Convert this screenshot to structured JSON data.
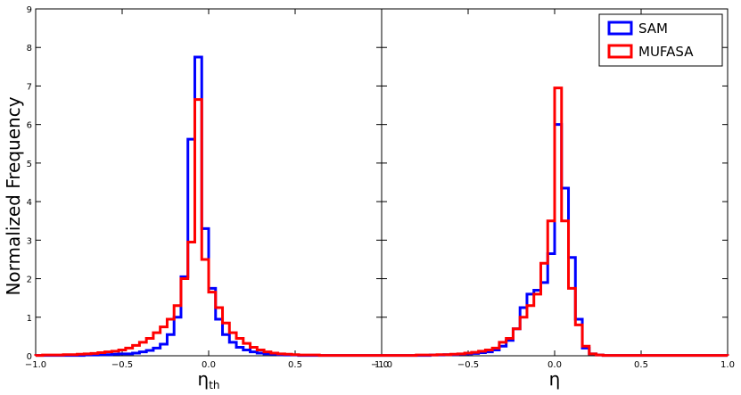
{
  "chart_data": [
    {
      "type": "line",
      "panel": "left",
      "xlabel": "η",
      "xlabel_subscript": "th",
      "ylabel": "Normalized Frequency",
      "xlim": [
        -1.0,
        1.0
      ],
      "ylim": [
        0,
        9
      ],
      "x_ticks": [
        "−1.0",
        "−0.5",
        "0.0",
        "0.5",
        "1.0"
      ],
      "y_ticks": [
        "0",
        "1",
        "2",
        "3",
        "4",
        "5",
        "6",
        "7",
        "8",
        "9"
      ],
      "bin_edges_start": -1.0,
      "bin_width": 0.04,
      "series": [
        {
          "name": "SAM",
          "color": "#0000ff",
          "values": [
            0.01,
            0.01,
            0.01,
            0.01,
            0.01,
            0.01,
            0.01,
            0.02,
            0.02,
            0.03,
            0.03,
            0.04,
            0.05,
            0.05,
            0.07,
            0.1,
            0.14,
            0.2,
            0.3,
            0.55,
            1.0,
            2.05,
            5.62,
            7.75,
            3.3,
            1.75,
            0.95,
            0.55,
            0.35,
            0.22,
            0.15,
            0.1,
            0.07,
            0.05,
            0.04,
            0.03,
            0.02,
            0.02,
            0.01,
            0.01,
            0.01,
            0.01,
            0.01,
            0.01,
            0.01,
            0.01,
            0.01,
            0.01,
            0.01,
            0.01
          ]
        },
        {
          "name": "MUFASA",
          "color": "#ff0000",
          "values": [
            0.01,
            0.02,
            0.02,
            0.02,
            0.03,
            0.03,
            0.04,
            0.05,
            0.06,
            0.08,
            0.1,
            0.12,
            0.15,
            0.2,
            0.27,
            0.35,
            0.45,
            0.6,
            0.75,
            0.95,
            1.3,
            2.0,
            2.95,
            6.65,
            2.5,
            1.65,
            1.25,
            0.85,
            0.6,
            0.45,
            0.32,
            0.22,
            0.15,
            0.1,
            0.07,
            0.05,
            0.04,
            0.03,
            0.02,
            0.02,
            0.02,
            0.01,
            0.01,
            0.01,
            0.01,
            0.01,
            0.01,
            0.01,
            0.01,
            0.01
          ]
        }
      ]
    },
    {
      "type": "line",
      "panel": "right",
      "xlabel": "η",
      "xlim": [
        -1.0,
        1.0
      ],
      "ylim": [
        0,
        9
      ],
      "x_ticks": [
        "−1.0",
        "−0.5",
        "0.0",
        "0.5",
        "1.0"
      ],
      "bin_edges_start": -1.0,
      "bin_width": 0.04,
      "series": [
        {
          "name": "SAM",
          "color": "#0000ff",
          "values": [
            0.01,
            0.01,
            0.01,
            0.01,
            0.01,
            0.01,
            0.01,
            0.02,
            0.02,
            0.03,
            0.03,
            0.04,
            0.05,
            0.06,
            0.08,
            0.1,
            0.15,
            0.25,
            0.4,
            0.7,
            1.25,
            1.6,
            1.7,
            1.9,
            2.65,
            6.0,
            4.35,
            2.55,
            0.95,
            0.2,
            0.05,
            0.02,
            0.01,
            0.01,
            0.01,
            0.01,
            0.01,
            0.01,
            0.01,
            0.01,
            0.01,
            0.01,
            0.01,
            0.01,
            0.01,
            0.01,
            0.01,
            0.01,
            0.01,
            0.01
          ]
        },
        {
          "name": "MUFASA",
          "color": "#ff0000",
          "values": [
            0.01,
            0.01,
            0.01,
            0.01,
            0.01,
            0.02,
            0.02,
            0.02,
            0.03,
            0.03,
            0.04,
            0.05,
            0.07,
            0.09,
            0.12,
            0.15,
            0.2,
            0.35,
            0.45,
            0.7,
            1.0,
            1.3,
            1.6,
            2.4,
            3.5,
            6.95,
            3.5,
            1.75,
            0.8,
            0.25,
            0.05,
            0.02,
            0.01,
            0.01,
            0.01,
            0.01,
            0.01,
            0.01,
            0.01,
            0.01,
            0.01,
            0.01,
            0.01,
            0.01,
            0.01,
            0.01,
            0.01,
            0.01,
            0.01,
            0.01
          ]
        }
      ]
    }
  ],
  "legend": {
    "placement": "top-right",
    "items": [
      {
        "label": "SAM",
        "color": "#0000ff"
      },
      {
        "label": "MUFASA",
        "color": "#ff0000"
      }
    ]
  }
}
